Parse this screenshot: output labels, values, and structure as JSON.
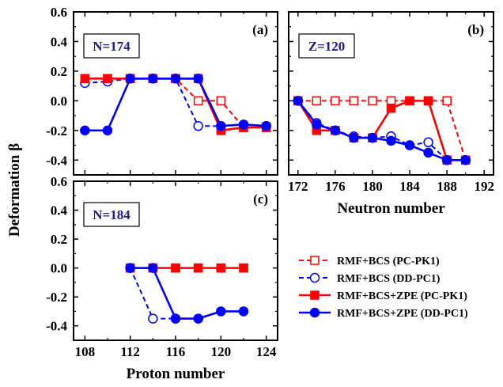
{
  "figure": {
    "ylabel": "Deformation β",
    "legend": [
      {
        "label": "RMF+BCS (PC-PK1)",
        "color": "#ff0000",
        "dashed": true,
        "filled": false,
        "marker": "square"
      },
      {
        "label": "RMF+BCS (DD-PC1)",
        "color": "#0000ff",
        "dashed": true,
        "filled": false,
        "marker": "circle"
      },
      {
        "label": "RMF+BCS+ZPE (PC-PK1)",
        "color": "#ff0000",
        "dashed": false,
        "filled": true,
        "marker": "square"
      },
      {
        "label": "RMF+BCS+ZPE (DD-PC1)",
        "color": "#0000ff",
        "dashed": false,
        "filled": true,
        "marker": "circle"
      }
    ]
  },
  "chart_data": [
    {
      "type": "line",
      "panel": "(a)",
      "inset_label": "N=174",
      "xlabel": "",
      "ylabel": "Deformation β",
      "xlim": [
        107,
        125
      ],
      "ylim": [
        -0.5,
        0.6
      ],
      "xticks": [
        "108",
        "112",
        "116",
        "120",
        "124"
      ],
      "show_xtick_labels": false,
      "yticks": [
        "0.6",
        "0.4",
        "0.2",
        "0.0",
        "-0.2",
        "-0.4"
      ],
      "show_ytick_labels": true,
      "series": [
        {
          "name": "RMF+BCS (PC-PK1)",
          "x": [
            108,
            110,
            112,
            114,
            116,
            118,
            120,
            122,
            124
          ],
          "y": [
            0.15,
            0.15,
            0.15,
            0.15,
            0.15,
            0.0,
            0.0,
            -0.18,
            -0.18
          ]
        },
        {
          "name": "RMF+BCS (DD-PC1)",
          "x": [
            108,
            110,
            112,
            114,
            116,
            118,
            120,
            122,
            124
          ],
          "y": [
            0.12,
            0.13,
            0.15,
            0.15,
            0.15,
            -0.17,
            -0.17,
            -0.16,
            -0.17
          ]
        },
        {
          "name": "RMF+BCS+ZPE (PC-PK1)",
          "x": [
            108,
            110,
            112,
            114,
            116,
            118,
            120,
            122,
            124
          ],
          "y": [
            0.15,
            0.15,
            0.15,
            0.15,
            0.15,
            0.15,
            -0.2,
            -0.18,
            -0.18
          ]
        },
        {
          "name": "RMF+BCS+ZPE (DD-PC1)",
          "x": [
            108,
            110,
            112,
            114,
            116,
            118,
            120,
            122,
            124
          ],
          "y": [
            -0.2,
            -0.2,
            0.15,
            0.15,
            0.15,
            0.15,
            -0.17,
            -0.16,
            -0.17
          ]
        }
      ]
    },
    {
      "type": "line",
      "panel": "(b)",
      "inset_label": "Z=120",
      "xlabel": "Neutron number",
      "ylabel": "",
      "xlim": [
        171,
        193
      ],
      "ylim": [
        -0.5,
        0.6
      ],
      "xticks": [
        "172",
        "176",
        "180",
        "184",
        "188",
        "192"
      ],
      "show_xtick_labels": true,
      "yticks": [
        "0.6",
        "0.4",
        "0.2",
        "0.0",
        "-0.2",
        "-0.4"
      ],
      "show_ytick_labels": false,
      "series": [
        {
          "name": "RMF+BCS (PC-PK1)",
          "x": [
            172,
            174,
            176,
            178,
            180,
            182,
            184,
            186,
            188,
            190
          ],
          "y": [
            0.0,
            0.0,
            0.0,
            0.0,
            0.0,
            0.0,
            0.0,
            0.0,
            0.0,
            -0.4
          ]
        },
        {
          "name": "RMF+BCS (DD-PC1)",
          "x": [
            172,
            174,
            176,
            178,
            180,
            182,
            184,
            186,
            188,
            190
          ],
          "y": [
            0.0,
            -0.15,
            -0.2,
            -0.24,
            -0.25,
            -0.24,
            -0.3,
            -0.28,
            -0.4,
            -0.4
          ]
        },
        {
          "name": "RMF+BCS+ZPE (PC-PK1)",
          "x": [
            172,
            174,
            176,
            178,
            180,
            182,
            184,
            186,
            188,
            190
          ],
          "y": [
            0.0,
            -0.2,
            -0.2,
            -0.25,
            -0.25,
            -0.05,
            0.0,
            0.0,
            -0.4,
            -0.4
          ]
        },
        {
          "name": "RMF+BCS+ZPE (DD-PC1)",
          "x": [
            172,
            174,
            176,
            178,
            180,
            182,
            184,
            186,
            188,
            190
          ],
          "y": [
            0.0,
            -0.16,
            -0.2,
            -0.25,
            -0.25,
            -0.27,
            -0.3,
            -0.35,
            -0.4,
            -0.4
          ]
        }
      ]
    },
    {
      "type": "line",
      "panel": "(c)",
      "inset_label": "N=184",
      "xlabel": "Proton number",
      "ylabel": "",
      "xlim": [
        107,
        125
      ],
      "ylim": [
        -0.5,
        0.6
      ],
      "xticks": [
        "108",
        "112",
        "116",
        "120",
        "124"
      ],
      "show_xtick_labels": true,
      "yticks": [
        "0.6",
        "0.4",
        "0.2",
        "0.0",
        "-0.2",
        "-0.4"
      ],
      "show_ytick_labels": true,
      "series": [
        {
          "name": "RMF+BCS (PC-PK1)",
          "x": [
            112,
            114,
            116,
            118,
            120,
            122
          ],
          "y": [
            0.0,
            0.0,
            0.0,
            0.0,
            0.0,
            0.0
          ]
        },
        {
          "name": "RMF+BCS (DD-PC1)",
          "x": [
            112,
            114,
            116,
            118
          ],
          "y": [
            0.0,
            -0.35,
            -0.35,
            -0.35
          ]
        },
        {
          "name": "RMF+BCS+ZPE (PC-PK1)",
          "x": [
            112,
            114,
            116,
            118,
            120,
            122
          ],
          "y": [
            0.0,
            0.0,
            0.0,
            0.0,
            0.0,
            0.0
          ]
        },
        {
          "name": "RMF+BCS+ZPE (DD-PC1)",
          "x": [
            112,
            114,
            116,
            118,
            120,
            122
          ],
          "y": [
            0.0,
            0.0,
            -0.35,
            -0.35,
            -0.3,
            -0.3
          ]
        }
      ]
    }
  ]
}
